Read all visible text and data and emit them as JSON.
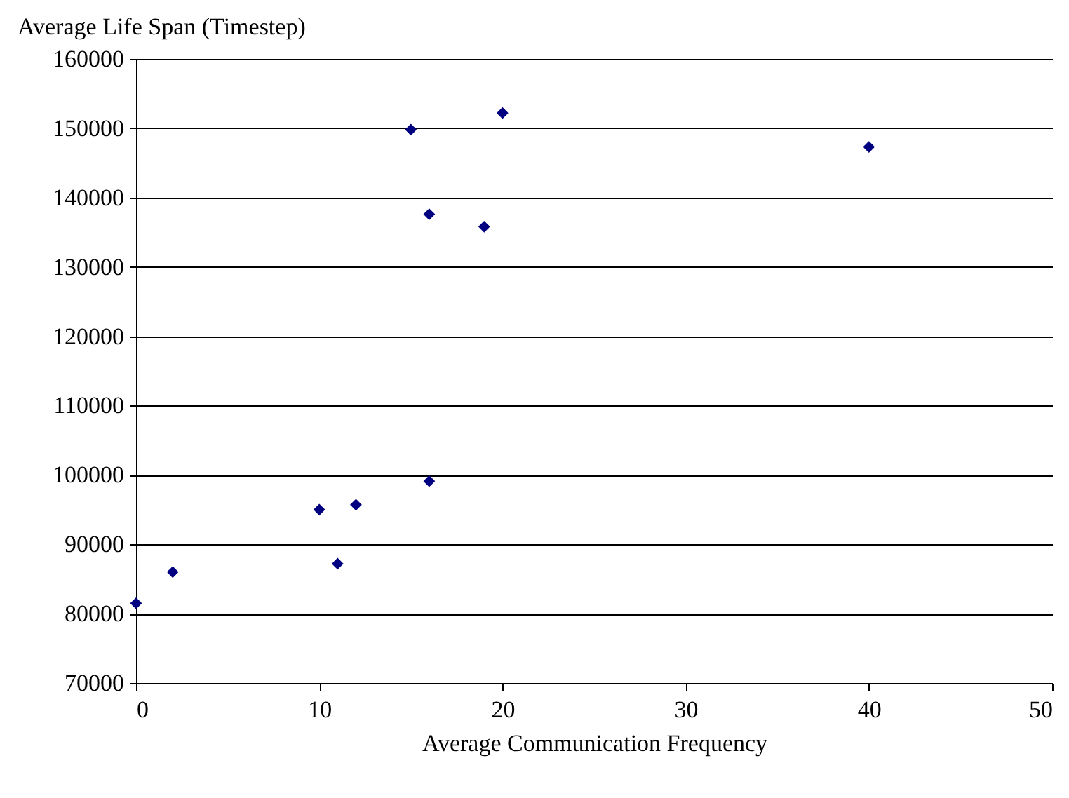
{
  "chart_data": {
    "type": "scatter",
    "xlabel": "Average Communication Frequency",
    "ylabel": "Average Life Span (Timestep)",
    "x": [
      0,
      2,
      10,
      11,
      12,
      16,
      15,
      20,
      16,
      19,
      40
    ],
    "series": [
      {
        "color": "#000080",
        "values": [
          81500,
          86000,
          95000,
          87200,
          95700,
          99100,
          149800,
          152200,
          137600,
          135800,
          147300
        ]
      }
    ],
    "xlim": [
      0,
      50
    ],
    "xticks": [
      0,
      10,
      20,
      30,
      40,
      50
    ],
    "ylim": [
      70000,
      160000
    ],
    "yticks": [
      70000,
      80000,
      90000,
      100000,
      110000,
      120000,
      130000,
      140000,
      150000,
      160000
    ],
    "grid": "y",
    "marker": "diamond"
  }
}
